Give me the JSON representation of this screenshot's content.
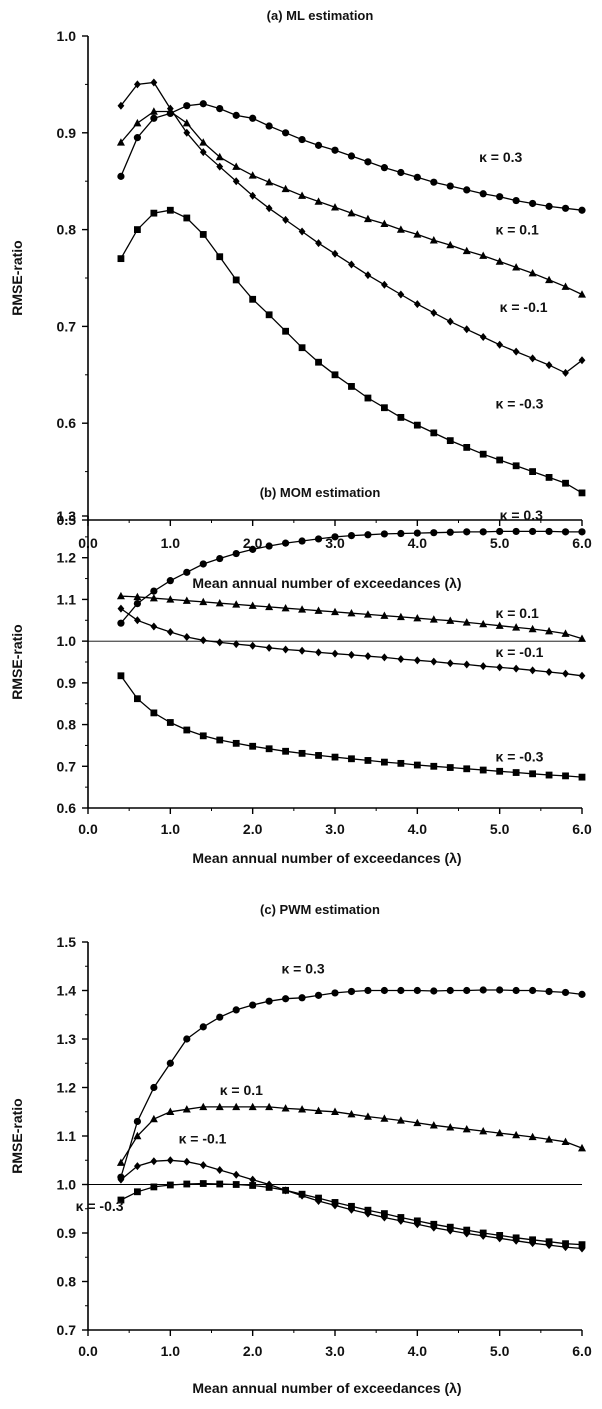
{
  "chart_data": [
    {
      "type": "line",
      "title": "(a) ML estimation",
      "xlabel": "Mean annual number of exceedances (λ)",
      "ylabel": "RMSE-ratio",
      "xlim": [
        0.0,
        6.0
      ],
      "ylim": [
        0.5,
        1.0
      ],
      "xticks": [
        "0.0",
        "1.0",
        "2.0",
        "3.0",
        "4.0",
        "5.0",
        "6.0"
      ],
      "yticks": [
        "0.5",
        "0.6",
        "0.7",
        "0.8",
        "0.9",
        "1.0"
      ],
      "reference_line": null,
      "x": [
        0.4,
        0.6,
        0.8,
        1.0,
        1.2,
        1.4,
        1.6,
        1.8,
        2.0,
        2.2,
        2.4,
        2.6,
        2.8,
        3.0,
        3.2,
        3.4,
        3.6,
        3.8,
        4.0,
        4.2,
        4.4,
        4.6,
        4.8,
        5.0,
        5.2,
        5.4,
        5.6,
        5.8,
        6.0
      ],
      "series": [
        {
          "name": "κ = 0.3",
          "marker": "circle",
          "values": [
            0.855,
            0.895,
            0.915,
            0.92,
            0.928,
            0.93,
            0.925,
            0.918,
            0.915,
            0.907,
            0.9,
            0.893,
            0.887,
            0.882,
            0.876,
            0.87,
            0.864,
            0.859,
            0.854,
            0.849,
            0.845,
            0.841,
            0.837,
            0.834,
            0.83,
            0.827,
            0.824,
            0.822,
            0.82
          ]
        },
        {
          "name": "κ = 0.1",
          "marker": "triangle",
          "values": [
            0.89,
            0.91,
            0.922,
            0.922,
            0.91,
            0.89,
            0.875,
            0.865,
            0.856,
            0.849,
            0.842,
            0.835,
            0.829,
            0.823,
            0.817,
            0.811,
            0.806,
            0.8,
            0.795,
            0.789,
            0.784,
            0.778,
            0.773,
            0.767,
            0.761,
            0.755,
            0.748,
            0.741,
            0.733
          ]
        },
        {
          "name": "κ = -0.1",
          "marker": "diamond",
          "values": [
            0.928,
            0.95,
            0.952,
            0.925,
            0.9,
            0.88,
            0.865,
            0.85,
            0.835,
            0.822,
            0.81,
            0.798,
            0.786,
            0.775,
            0.764,
            0.753,
            0.743,
            0.733,
            0.723,
            0.714,
            0.705,
            0.697,
            0.689,
            0.681,
            0.674,
            0.667,
            0.66,
            0.652,
            0.665
          ]
        },
        {
          "name": "κ = -0.3",
          "marker": "square",
          "values": [
            0.77,
            0.8,
            0.817,
            0.82,
            0.812,
            0.795,
            0.772,
            0.748,
            0.728,
            0.712,
            0.695,
            0.678,
            0.663,
            0.65,
            0.638,
            0.626,
            0.616,
            0.606,
            0.598,
            0.59,
            0.582,
            0.575,
            0.568,
            0.562,
            0.556,
            0.55,
            0.544,
            0.538,
            0.528
          ]
        }
      ],
      "labels": [
        {
          "text": "κ = 0.3",
          "x": 4.75,
          "y": 0.87
        },
        {
          "text": "κ = 0.1",
          "x": 4.95,
          "y": 0.795
        },
        {
          "text": "κ = -0.1",
          "x": 5.0,
          "y": 0.715
        },
        {
          "text": "κ = -0.3",
          "x": 4.95,
          "y": 0.615
        }
      ]
    },
    {
      "type": "line",
      "title": "(b) MOM estimation",
      "xlabel": "Mean annual number of exceedances (λ)",
      "ylabel": "RMSE-ratio",
      "xlim": [
        0.0,
        6.0
      ],
      "ylim": [
        0.6,
        1.3
      ],
      "xticks": [
        "0.0",
        "1.0",
        "2.0",
        "3.0",
        "4.0",
        "5.0",
        "6.0"
      ],
      "yticks": [
        "0.6",
        "0.7",
        "0.8",
        "0.9",
        "1.0",
        "1.1",
        "1.2",
        "1.3"
      ],
      "reference_line": 1.0,
      "x": [
        0.4,
        0.6,
        0.8,
        1.0,
        1.2,
        1.4,
        1.6,
        1.8,
        2.0,
        2.2,
        2.4,
        2.6,
        2.8,
        3.0,
        3.2,
        3.4,
        3.6,
        3.8,
        4.0,
        4.2,
        4.4,
        4.6,
        4.8,
        5.0,
        5.2,
        5.4,
        5.6,
        5.8,
        6.0
      ],
      "series": [
        {
          "name": "κ = 0.3",
          "marker": "circle",
          "values": [
            1.043,
            1.09,
            1.12,
            1.145,
            1.165,
            1.185,
            1.198,
            1.21,
            1.22,
            1.228,
            1.235,
            1.24,
            1.245,
            1.25,
            1.253,
            1.255,
            1.257,
            1.258,
            1.259,
            1.26,
            1.261,
            1.262,
            1.262,
            1.263,
            1.263,
            1.263,
            1.263,
            1.262,
            1.262
          ]
        },
        {
          "name": "κ = 0.1",
          "marker": "triangle",
          "values": [
            1.108,
            1.106,
            1.103,
            1.1,
            1.097,
            1.094,
            1.091,
            1.088,
            1.085,
            1.082,
            1.079,
            1.076,
            1.073,
            1.07,
            1.067,
            1.064,
            1.061,
            1.058,
            1.055,
            1.052,
            1.049,
            1.045,
            1.041,
            1.037,
            1.033,
            1.029,
            1.024,
            1.018,
            1.006
          ]
        },
        {
          "name": "κ = -0.1",
          "marker": "diamond",
          "values": [
            1.078,
            1.05,
            1.035,
            1.022,
            1.01,
            1.002,
            0.997,
            0.993,
            0.989,
            0.984,
            0.98,
            0.977,
            0.973,
            0.97,
            0.967,
            0.964,
            0.961,
            0.957,
            0.954,
            0.951,
            0.947,
            0.944,
            0.94,
            0.937,
            0.934,
            0.93,
            0.926,
            0.922,
            0.917
          ]
        },
        {
          "name": "κ = -0.3",
          "marker": "square",
          "values": [
            0.917,
            0.862,
            0.828,
            0.805,
            0.787,
            0.773,
            0.763,
            0.755,
            0.748,
            0.742,
            0.736,
            0.731,
            0.726,
            0.722,
            0.718,
            0.714,
            0.71,
            0.707,
            0.703,
            0.7,
            0.697,
            0.694,
            0.691,
            0.688,
            0.685,
            0.682,
            0.679,
            0.677,
            0.674
          ]
        }
      ],
      "labels": [
        {
          "text": "κ = 0.3",
          "x": 5.0,
          "y": 1.29
        },
        {
          "text": "κ = 0.1",
          "x": 4.95,
          "y": 1.055
        },
        {
          "text": "κ = -0.1",
          "x": 4.95,
          "y": 0.962
        },
        {
          "text": "κ = -0.3",
          "x": 4.95,
          "y": 0.712
        }
      ]
    },
    {
      "type": "line",
      "title": "(c) PWM estimation",
      "xlabel": "Mean annual number of exceedances (λ)",
      "ylabel": "RMSE-ratio",
      "xlim": [
        0.0,
        6.0
      ],
      "ylim": [
        0.7,
        1.5
      ],
      "xticks": [
        "0.0",
        "1.0",
        "2.0",
        "3.0",
        "4.0",
        "5.0",
        "6.0"
      ],
      "yticks": [
        "0.7",
        "0.8",
        "0.9",
        "1.0",
        "1.1",
        "1.2",
        "1.3",
        "1.4",
        "1.5"
      ],
      "reference_line": 1.0,
      "x": [
        0.4,
        0.6,
        0.8,
        1.0,
        1.2,
        1.4,
        1.6,
        1.8,
        2.0,
        2.2,
        2.4,
        2.6,
        2.8,
        3.0,
        3.2,
        3.4,
        3.6,
        3.8,
        4.0,
        4.2,
        4.4,
        4.6,
        4.8,
        5.0,
        5.2,
        5.4,
        5.6,
        5.8,
        6.0
      ],
      "series": [
        {
          "name": "κ = 0.3",
          "marker": "circle",
          "values": [
            1.015,
            1.13,
            1.2,
            1.25,
            1.3,
            1.325,
            1.345,
            1.36,
            1.37,
            1.378,
            1.383,
            1.385,
            1.39,
            1.395,
            1.398,
            1.4,
            1.4,
            1.4,
            1.4,
            1.399,
            1.4,
            1.4,
            1.401,
            1.401,
            1.4,
            1.4,
            1.398,
            1.396,
            1.392
          ]
        },
        {
          "name": "κ = 0.1",
          "marker": "triangle",
          "values": [
            1.045,
            1.1,
            1.135,
            1.15,
            1.155,
            1.16,
            1.16,
            1.16,
            1.16,
            1.16,
            1.157,
            1.155,
            1.152,
            1.15,
            1.145,
            1.14,
            1.136,
            1.132,
            1.127,
            1.122,
            1.118,
            1.114,
            1.11,
            1.106,
            1.102,
            1.098,
            1.093,
            1.088,
            1.075
          ]
        },
        {
          "name": "κ = -0.1",
          "marker": "diamond",
          "values": [
            1.01,
            1.038,
            1.048,
            1.05,
            1.047,
            1.04,
            1.03,
            1.02,
            1.01,
            1.0,
            0.988,
            0.977,
            0.966,
            0.957,
            0.948,
            0.94,
            0.932,
            0.925,
            0.918,
            0.911,
            0.905,
            0.899,
            0.894,
            0.889,
            0.884,
            0.879,
            0.875,
            0.871,
            0.868
          ]
        },
        {
          "name": "κ = -0.3",
          "marker": "square",
          "values": [
            0.968,
            0.985,
            0.995,
            0.999,
            1.001,
            1.002,
            1.001,
            1.0,
            0.998,
            0.994,
            0.988,
            0.98,
            0.972,
            0.963,
            0.955,
            0.947,
            0.94,
            0.932,
            0.925,
            0.918,
            0.912,
            0.906,
            0.9,
            0.895,
            0.89,
            0.886,
            0.882,
            0.878,
            0.876
          ]
        }
      ],
      "labels": [
        {
          "text": "κ = 0.3",
          "x": 2.35,
          "y": 1.435
        },
        {
          "text": "κ = 0.1",
          "x": 1.6,
          "y": 1.185
        },
        {
          "text": "κ = -0.1",
          "x": 1.1,
          "y": 1.085
        },
        {
          "text": "κ = -0.3",
          "x": -0.15,
          "y": 0.945
        }
      ]
    }
  ]
}
